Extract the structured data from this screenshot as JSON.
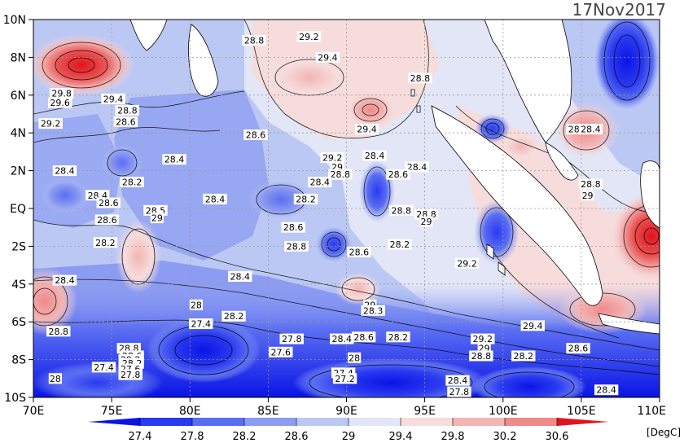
{
  "map": {
    "date": "17Nov2017",
    "units": "[DegC]",
    "lat_labels": [
      "10N",
      "8N",
      "6N",
      "4N",
      "2N",
      "EQ",
      "2S",
      "4S",
      "6S",
      "8S",
      "10S"
    ],
    "lon_labels": [
      "70E",
      "75E",
      "80E",
      "85E",
      "90E",
      "95E",
      "100E",
      "105E",
      "110E"
    ],
    "colorbar": {
      "levels": [
        "27.4",
        "27.8",
        "28.2",
        "28.6",
        "29",
        "29.4",
        "29.8",
        "30.2",
        "30.6"
      ],
      "colors": [
        "#0a14e6",
        "#2a3af0",
        "#5a6ef2",
        "#8c9cf2",
        "#bcc8f4",
        "#e2e6f6",
        "#f7dcdc",
        "#f3b4b4",
        "#ef8a8a",
        "#ea5252",
        "#e0141e"
      ]
    },
    "contour_labels": [
      {
        "t": "29.2",
        "lon": 87.6,
        "lat": 9.1
      },
      {
        "t": "28.8",
        "lon": 84.1,
        "lat": 8.9
      },
      {
        "t": "29.4",
        "lon": 88.8,
        "lat": 8.0
      },
      {
        "t": "28.8",
        "lon": 94.7,
        "lat": 6.9
      },
      {
        "t": "29.8",
        "lon": 71.8,
        "lat": 6.1
      },
      {
        "t": "29.6",
        "lon": 71.7,
        "lat": 5.6
      },
      {
        "t": "29.4",
        "lon": 75.1,
        "lat": 5.8
      },
      {
        "t": "28.8",
        "lon": 76.0,
        "lat": 5.2
      },
      {
        "t": "28.6",
        "lon": 75.9,
        "lat": 4.6
      },
      {
        "t": "29.2",
        "lon": 71.1,
        "lat": 4.5
      },
      {
        "t": "28.6",
        "lon": 84.2,
        "lat": 3.9
      },
      {
        "t": "29.4",
        "lon": 91.3,
        "lat": 4.2
      },
      {
        "t": "28.6",
        "lon": 104.8,
        "lat": 4.2
      },
      {
        "t": "28.4",
        "lon": 105.6,
        "lat": 4.2
      },
      {
        "t": "28.4",
        "lon": 79.0,
        "lat": 2.6
      },
      {
        "t": "29.2",
        "lon": 89.1,
        "lat": 2.7
      },
      {
        "t": "28.4",
        "lon": 91.8,
        "lat": 2.8
      },
      {
        "t": "29",
        "lon": 89.4,
        "lat": 2.2
      },
      {
        "t": "28.4",
        "lon": 94.5,
        "lat": 2.2
      },
      {
        "t": "28.4",
        "lon": 72.0,
        "lat": 2.0
      },
      {
        "t": "28.8",
        "lon": 89.6,
        "lat": 1.8
      },
      {
        "t": "28.6",
        "lon": 93.3,
        "lat": 1.8
      },
      {
        "t": "28.2",
        "lon": 76.3,
        "lat": 1.4
      },
      {
        "t": "28.4",
        "lon": 88.3,
        "lat": 1.4
      },
      {
        "t": "28.8",
        "lon": 105.6,
        "lat": 1.3
      },
      {
        "t": "28.4",
        "lon": 74.1,
        "lat": 0.7
      },
      {
        "t": "29",
        "lon": 105.4,
        "lat": 0.7
      },
      {
        "t": "28.6",
        "lon": 74.8,
        "lat": 0.3
      },
      {
        "t": "28.4",
        "lon": 81.6,
        "lat": 0.5
      },
      {
        "t": "28.2",
        "lon": 87.4,
        "lat": 0.5
      },
      {
        "t": "28.5",
        "lon": 77.8,
        "lat": -0.1
      },
      {
        "t": "28.8",
        "lon": 93.5,
        "lat": -0.1
      },
      {
        "t": "28.8",
        "lon": 95.1,
        "lat": -0.3
      },
      {
        "t": "29",
        "lon": 77.9,
        "lat": -0.5
      },
      {
        "t": "28.6",
        "lon": 74.7,
        "lat": -0.6
      },
      {
        "t": "29",
        "lon": 95.1,
        "lat": -0.7
      },
      {
        "t": "28.6",
        "lon": 86.6,
        "lat": -1.0
      },
      {
        "t": "28.2",
        "lon": 74.6,
        "lat": -1.8
      },
      {
        "t": "28.8",
        "lon": 86.8,
        "lat": -2.0
      },
      {
        "t": "28.2",
        "lon": 93.4,
        "lat": -1.9
      },
      {
        "t": "28.6",
        "lon": 90.8,
        "lat": -2.3
      },
      {
        "t": "29.2",
        "lon": 97.7,
        "lat": -2.9
      },
      {
        "t": "28.4",
        "lon": 83.2,
        "lat": -3.6
      },
      {
        "t": "28.4",
        "lon": 72.0,
        "lat": -3.8
      },
      {
        "t": "28",
        "lon": 80.4,
        "lat": -5.1
      },
      {
        "t": "29",
        "lon": 91.5,
        "lat": -5.1
      },
      {
        "t": "28.3",
        "lon": 91.7,
        "lat": -5.4
      },
      {
        "t": "28.2",
        "lon": 82.8,
        "lat": -5.7
      },
      {
        "t": "27.4",
        "lon": 80.7,
        "lat": -6.1
      },
      {
        "t": "29.4",
        "lon": 101.9,
        "lat": -6.2
      },
      {
        "t": "28.8",
        "lon": 71.6,
        "lat": -6.5
      },
      {
        "t": "27.8",
        "lon": 86.5,
        "lat": -6.9
      },
      {
        "t": "28.4",
        "lon": 89.7,
        "lat": -6.9
      },
      {
        "t": "28.6",
        "lon": 91.1,
        "lat": -6.8
      },
      {
        "t": "28.2",
        "lon": 93.3,
        "lat": -6.8
      },
      {
        "t": "29.2",
        "lon": 98.7,
        "lat": -6.9
      },
      {
        "t": "28.8",
        "lon": 76.1,
        "lat": -7.4
      },
      {
        "t": "27.6",
        "lon": 85.8,
        "lat": -7.6
      },
      {
        "t": "29",
        "lon": 98.8,
        "lat": -7.4
      },
      {
        "t": "28.6",
        "lon": 104.8,
        "lat": -7.4
      },
      {
        "t": "28.6",
        "lon": 76.3,
        "lat": -7.8
      },
      {
        "t": "28",
        "lon": 90.5,
        "lat": -7.9
      },
      {
        "t": "28.8",
        "lon": 98.6,
        "lat": -7.8
      },
      {
        "t": "28.2",
        "lon": 101.3,
        "lat": -7.8
      },
      {
        "t": "29.2",
        "lon": 76.2,
        "lat": -8.0
      },
      {
        "t": "27.4",
        "lon": 74.5,
        "lat": -8.4
      },
      {
        "t": "28.2",
        "lon": 76.3,
        "lat": -8.2
      },
      {
        "t": "27.6",
        "lon": 76.2,
        "lat": -8.5
      },
      {
        "t": "27.4",
        "lon": 89.8,
        "lat": -8.7
      },
      {
        "t": "27.8",
        "lon": 76.2,
        "lat": -8.8
      },
      {
        "t": "28",
        "lon": 71.4,
        "lat": -9.0
      },
      {
        "t": "27.2",
        "lon": 89.9,
        "lat": -9.0
      },
      {
        "t": "28.4",
        "lon": 97.1,
        "lat": -9.1
      },
      {
        "t": "27.8",
        "lon": 97.2,
        "lat": -9.7
      },
      {
        "t": "28.4",
        "lon": 106.6,
        "lat": -9.6
      }
    ]
  }
}
